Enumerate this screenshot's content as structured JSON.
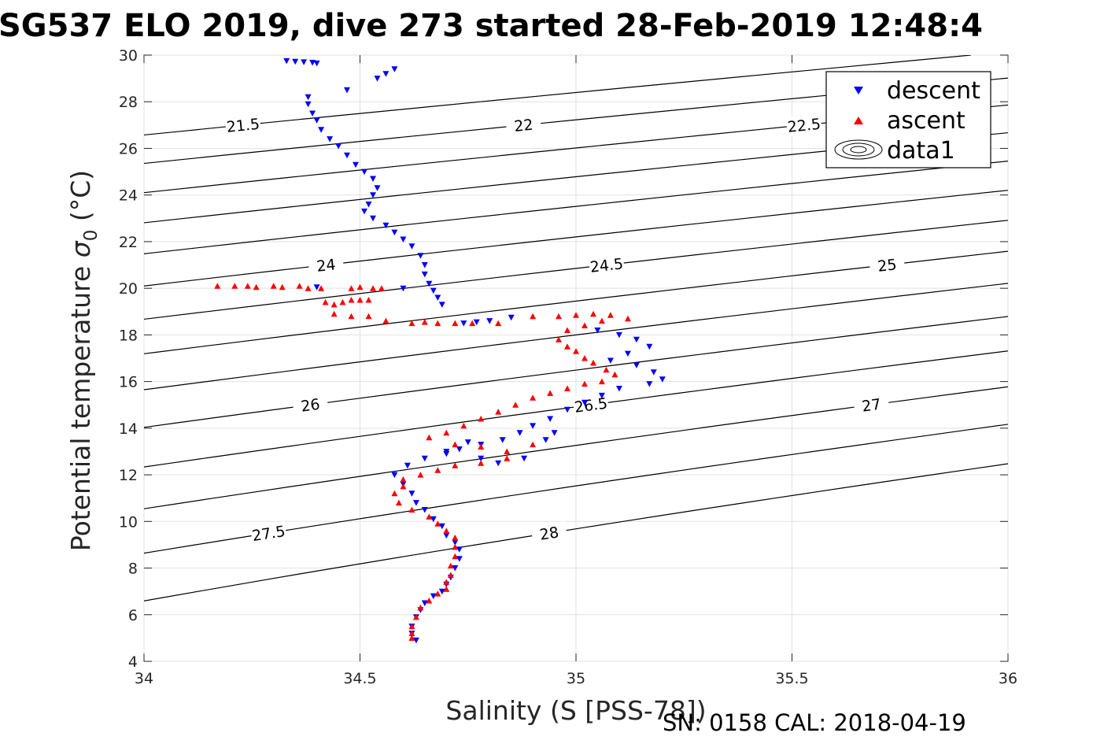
{
  "title": "SG537 ELO 2019, dive 273 started 28-Feb-2019 12:48:4",
  "footer": "SN: 0158  CAL: 2018-04-19",
  "chart_data": {
    "type": "scatter",
    "xlabel": "Salinity (S [PSS-78])",
    "ylabel_main": "Potential temperature ",
    "ylabel_sigma": "σ",
    "ylabel_sub": "0",
    "ylabel_unit": " (°C)",
    "xlim": [
      34,
      36
    ],
    "ylim": [
      4,
      30
    ],
    "xticks": [
      "34",
      "34.5",
      "35",
      "35.5",
      "36"
    ],
    "yticks": [
      "4",
      "6",
      "8",
      "10",
      "12",
      "14",
      "16",
      "18",
      "20",
      "22",
      "24",
      "26",
      "28",
      "30"
    ],
    "grid": true,
    "legend_position": "top-right",
    "colors": {
      "descent": "#0000ff",
      "ascent": "#ff0000",
      "contour": "#000000"
    },
    "series": [
      {
        "name": "descent",
        "marker": "triangle-down",
        "color": "#0000ff",
        "points": [
          [
            34.33,
            29.75
          ],
          [
            34.35,
            29.72
          ],
          [
            34.37,
            29.7
          ],
          [
            34.39,
            29.68
          ],
          [
            34.4,
            29.65
          ],
          [
            34.58,
            29.4
          ],
          [
            34.56,
            29.2
          ],
          [
            34.54,
            29.0
          ],
          [
            34.47,
            28.5
          ],
          [
            34.38,
            28.2
          ],
          [
            34.38,
            27.9
          ],
          [
            34.39,
            27.5
          ],
          [
            34.4,
            27.2
          ],
          [
            34.41,
            26.8
          ],
          [
            34.43,
            26.4
          ],
          [
            34.45,
            26.1
          ],
          [
            34.47,
            25.7
          ],
          [
            34.49,
            25.3
          ],
          [
            34.51,
            25.0
          ],
          [
            34.53,
            24.7
          ],
          [
            34.54,
            24.3
          ],
          [
            34.53,
            24.0
          ],
          [
            34.52,
            23.6
          ],
          [
            34.51,
            23.3
          ],
          [
            34.53,
            23.0
          ],
          [
            34.56,
            22.7
          ],
          [
            34.58,
            22.4
          ],
          [
            34.6,
            22.1
          ],
          [
            34.62,
            21.8
          ],
          [
            34.64,
            21.4
          ],
          [
            34.65,
            21.0
          ],
          [
            34.65,
            20.6
          ],
          [
            34.66,
            20.2
          ],
          [
            34.67,
            19.9
          ],
          [
            34.68,
            19.6
          ],
          [
            34.69,
            19.3
          ],
          [
            34.4,
            20.05
          ],
          [
            34.6,
            20.0
          ],
          [
            34.85,
            18.75
          ],
          [
            34.8,
            18.6
          ],
          [
            34.77,
            18.55
          ],
          [
            34.74,
            18.5
          ],
          [
            35.05,
            18.2
          ],
          [
            35.1,
            18.0
          ],
          [
            35.14,
            17.8
          ],
          [
            35.17,
            17.5
          ],
          [
            35.12,
            17.2
          ],
          [
            35.08,
            16.9
          ],
          [
            35.14,
            16.7
          ],
          [
            35.18,
            16.4
          ],
          [
            35.2,
            16.1
          ],
          [
            35.17,
            15.9
          ],
          [
            35.1,
            15.7
          ],
          [
            35.06,
            15.4
          ],
          [
            35.02,
            15.1
          ],
          [
            34.98,
            14.8
          ],
          [
            34.94,
            14.4
          ],
          [
            34.9,
            14.1
          ],
          [
            34.87,
            13.8
          ],
          [
            34.83,
            13.5
          ],
          [
            34.78,
            13.3
          ],
          [
            34.73,
            13.1
          ],
          [
            34.7,
            12.9
          ],
          [
            34.65,
            12.7
          ],
          [
            34.61,
            12.4
          ],
          [
            34.58,
            12.0
          ],
          [
            34.6,
            11.6
          ],
          [
            34.62,
            11.2
          ],
          [
            34.63,
            10.8
          ],
          [
            34.65,
            10.5
          ],
          [
            34.67,
            10.1
          ],
          [
            34.69,
            9.8
          ],
          [
            34.7,
            9.4
          ],
          [
            34.72,
            9.1
          ],
          [
            34.73,
            8.8
          ],
          [
            34.73,
            8.4
          ],
          [
            34.72,
            8.0
          ],
          [
            34.71,
            7.6
          ],
          [
            34.7,
            7.3
          ],
          [
            34.69,
            7.0
          ],
          [
            34.67,
            6.8
          ],
          [
            34.65,
            6.5
          ],
          [
            34.64,
            6.2
          ],
          [
            34.63,
            5.9
          ],
          [
            34.62,
            5.5
          ],
          [
            34.62,
            5.2
          ],
          [
            34.63,
            4.9
          ],
          [
            34.75,
            13.4
          ],
          [
            34.7,
            13.0
          ],
          [
            34.78,
            12.7
          ],
          [
            34.82,
            12.5
          ],
          [
            34.88,
            12.7
          ],
          [
            34.93,
            13.5
          ],
          [
            34.95,
            13.8
          ]
        ]
      },
      {
        "name": "ascent",
        "marker": "triangle-up",
        "color": "#ff0000",
        "points": [
          [
            34.17,
            20.1
          ],
          [
            34.21,
            20.1
          ],
          [
            34.24,
            20.1
          ],
          [
            34.26,
            20.05
          ],
          [
            34.3,
            20.1
          ],
          [
            34.32,
            20.05
          ],
          [
            34.36,
            20.1
          ],
          [
            34.38,
            20.0
          ],
          [
            34.41,
            20.0
          ],
          [
            34.48,
            20.0
          ],
          [
            34.5,
            20.05
          ],
          [
            34.53,
            20.0
          ],
          [
            34.55,
            20.0
          ],
          [
            34.42,
            19.4
          ],
          [
            34.44,
            19.3
          ],
          [
            34.46,
            19.4
          ],
          [
            34.48,
            19.5
          ],
          [
            34.5,
            19.5
          ],
          [
            34.52,
            19.5
          ],
          [
            34.44,
            18.9
          ],
          [
            34.48,
            18.8
          ],
          [
            34.52,
            18.8
          ],
          [
            34.56,
            18.6
          ],
          [
            34.62,
            18.5
          ],
          [
            34.65,
            18.55
          ],
          [
            34.68,
            18.5
          ],
          [
            34.72,
            18.5
          ],
          [
            34.76,
            18.5
          ],
          [
            34.82,
            18.5
          ],
          [
            34.9,
            18.8
          ],
          [
            34.96,
            18.8
          ],
          [
            35.0,
            18.85
          ],
          [
            35.04,
            18.9
          ],
          [
            35.08,
            18.85
          ],
          [
            35.12,
            18.7
          ],
          [
            35.06,
            18.6
          ],
          [
            35.02,
            18.4
          ],
          [
            34.98,
            18.2
          ],
          [
            34.96,
            17.8
          ],
          [
            34.98,
            17.5
          ],
          [
            35.0,
            17.3
          ],
          [
            35.02,
            17.0
          ],
          [
            35.04,
            16.8
          ],
          [
            35.07,
            16.5
          ],
          [
            35.09,
            16.3
          ],
          [
            35.06,
            16.0
          ],
          [
            35.02,
            15.9
          ],
          [
            34.98,
            15.7
          ],
          [
            34.94,
            15.5
          ],
          [
            34.9,
            15.3
          ],
          [
            34.86,
            15.0
          ],
          [
            34.82,
            14.7
          ],
          [
            34.78,
            14.4
          ],
          [
            34.74,
            14.1
          ],
          [
            34.7,
            13.8
          ],
          [
            34.66,
            13.6
          ],
          [
            34.72,
            13.3
          ],
          [
            34.78,
            13.2
          ],
          [
            34.84,
            13.0
          ],
          [
            34.9,
            13.3
          ],
          [
            34.84,
            12.7
          ],
          [
            34.78,
            12.5
          ],
          [
            34.72,
            12.4
          ],
          [
            34.68,
            12.2
          ],
          [
            34.64,
            12.0
          ],
          [
            34.6,
            11.8
          ],
          [
            34.6,
            11.5
          ],
          [
            34.58,
            11.2
          ],
          [
            34.59,
            10.8
          ],
          [
            34.62,
            10.5
          ],
          [
            34.66,
            10.2
          ],
          [
            34.68,
            9.9
          ],
          [
            34.7,
            9.6
          ],
          [
            34.72,
            9.3
          ],
          [
            34.72,
            8.9
          ],
          [
            34.72,
            8.5
          ],
          [
            34.71,
            8.1
          ],
          [
            34.71,
            7.7
          ],
          [
            34.7,
            7.4
          ],
          [
            34.7,
            7.1
          ],
          [
            34.68,
            6.9
          ],
          [
            34.66,
            6.6
          ],
          [
            34.64,
            6.3
          ],
          [
            34.63,
            5.9
          ],
          [
            34.62,
            5.5
          ],
          [
            34.62,
            5.2
          ],
          [
            34.62,
            5.0
          ]
        ]
      }
    ],
    "contours": [
      {
        "level": "21.5"
      },
      {
        "level": "22"
      },
      {
        "level": "22.5"
      },
      {
        "level": "23"
      },
      {
        "level": "23.5"
      },
      {
        "level": "24"
      },
      {
        "level": "24.5"
      },
      {
        "level": "25"
      },
      {
        "level": "25.5"
      },
      {
        "level": "26"
      },
      {
        "level": "26.5"
      },
      {
        "level": "27"
      },
      {
        "level": "27.5"
      },
      {
        "level": "28"
      }
    ],
    "legend": {
      "entries": [
        "descent",
        "ascent",
        "data1"
      ]
    }
  }
}
